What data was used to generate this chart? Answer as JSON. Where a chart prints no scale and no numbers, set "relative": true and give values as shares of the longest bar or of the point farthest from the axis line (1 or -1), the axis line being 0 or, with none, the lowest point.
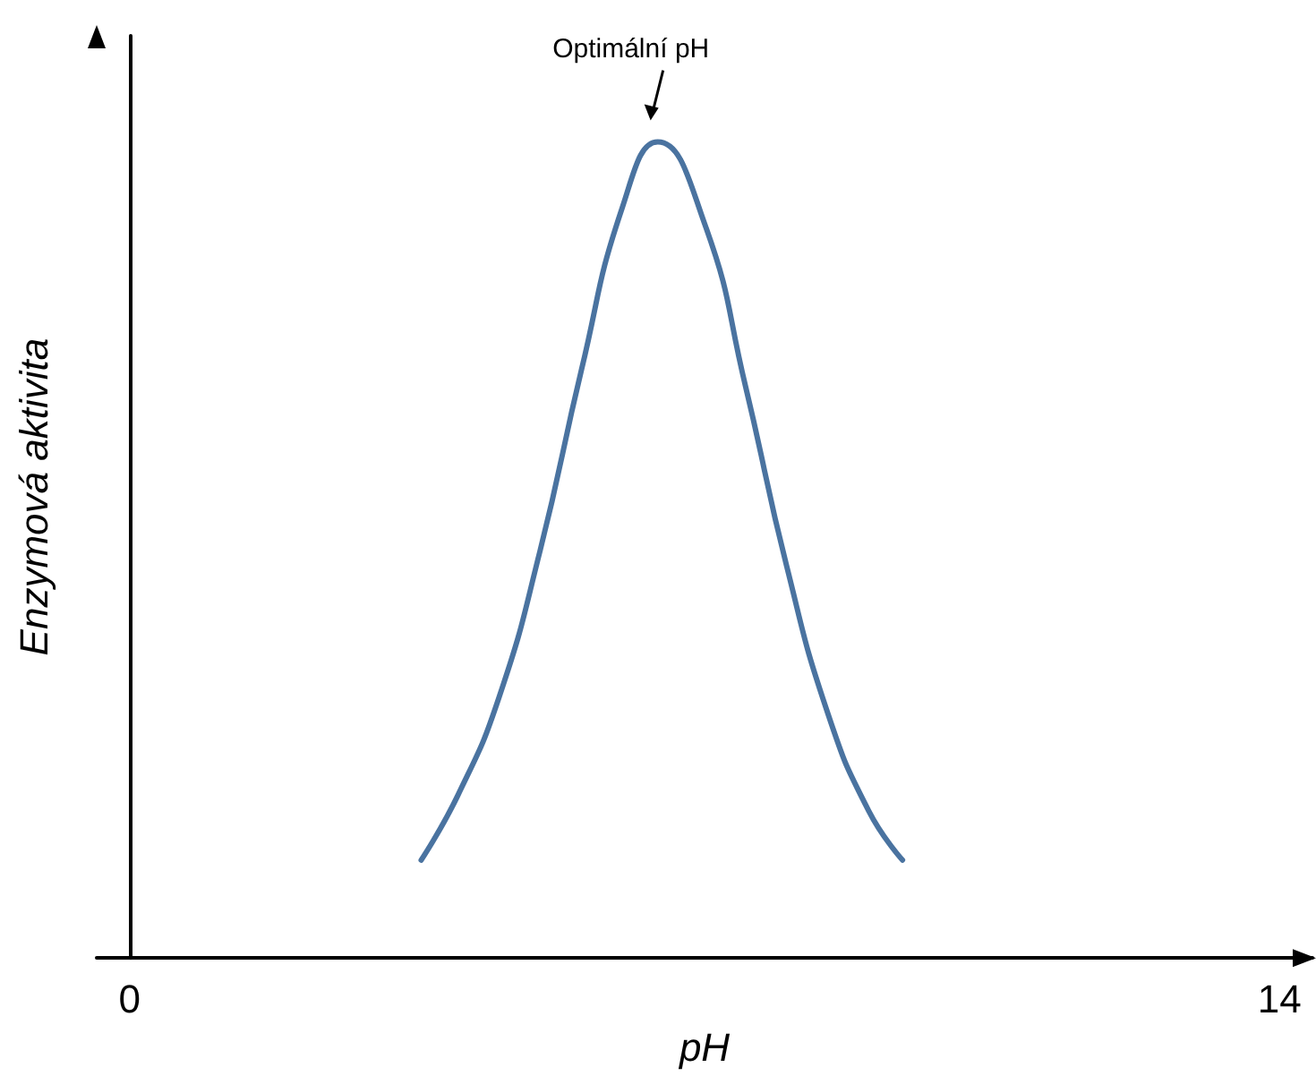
{
  "chart_data": {
    "type": "line",
    "relative": true,
    "xlabel": "pH",
    "ylabel": "Enzymová aktivita",
    "x": [
      3.55,
      4.0,
      4.5,
      5.0,
      5.5,
      6.0,
      6.43,
      7.0,
      7.5,
      8.0,
      8.5,
      9.0,
      9.41
    ],
    "series": [
      {
        "color": "#4a73a0",
        "values": [
          0.12,
          0.2,
          0.32,
          0.5,
          0.72,
          0.92,
          1.0,
          0.9,
          0.7,
          0.48,
          0.3,
          0.18,
          0.12
        ]
      }
    ],
    "xlim": [
      -0.4,
      14.4
    ],
    "xticks": [
      0,
      14
    ],
    "marker": "none",
    "line_style": "solid",
    "annotations": [
      {
        "text": "Optimální pH",
        "x": 6.43,
        "y": 1.0
      }
    ]
  }
}
